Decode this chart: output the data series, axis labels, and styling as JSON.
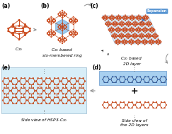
{
  "figsize": [
    2.43,
    1.89
  ],
  "dpi": 100,
  "bg": "white",
  "panel_labels": [
    "(a)",
    "(b)",
    "(c)",
    "(d)",
    "(e)"
  ],
  "label_fs": 5.5,
  "cap_fs": 4.2,
  "orange": "#c84010",
  "orange_hi": "#e05020",
  "bond": "#b03808",
  "blue_fill": "#7ab8e8",
  "blue_bg": "#a8d0f0",
  "light_blue_bg": "#c8e8f8",
  "arrow_gray": "#909090",
  "arrow_blue": "#4488cc",
  "captions": {
    "a": "C$_{20}$",
    "b": "C$_{20}$ based\nsix-membered ring",
    "c": "C$_{20}$ based\n2D layer",
    "d": "Side view of\nthe 2D layers",
    "e": "Side view of HSP3-C$_{20}$"
  }
}
